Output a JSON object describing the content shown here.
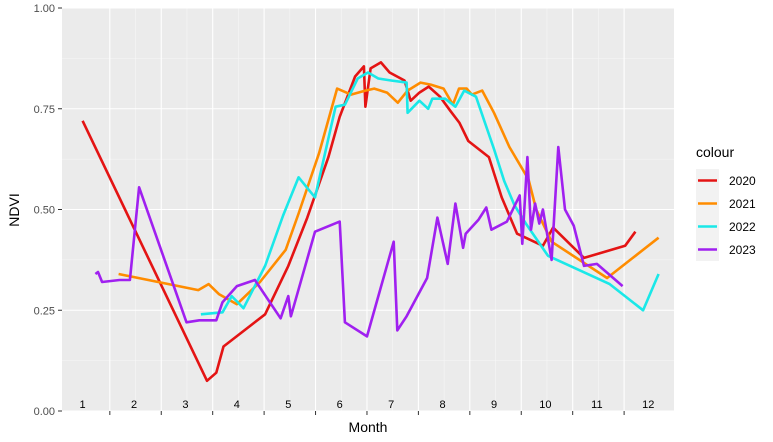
{
  "chart_data": {
    "type": "line",
    "xlabel": "Month",
    "ylabel": "NDVI",
    "xlim": [
      0.6,
      12.5
    ],
    "ylim": [
      0,
      1
    ],
    "y_ticks": [
      {
        "value": 0.0,
        "label": "0.00"
      },
      {
        "value": 0.25,
        "label": "0.25"
      },
      {
        "value": 0.5,
        "label": "0.50"
      },
      {
        "value": 0.75,
        "label": "0.75"
      },
      {
        "value": 1.0,
        "label": "1.00"
      }
    ],
    "x_tick_positions": [
      1.53,
      2.53,
      3.53,
      4.53,
      5.53,
      6.53,
      7.53,
      8.53,
      9.53,
      10.53,
      11.53
    ],
    "month_labels": [
      {
        "x": 1.0,
        "label": "1"
      },
      {
        "x": 2.0,
        "label": "2"
      },
      {
        "x": 3.0,
        "label": "3"
      },
      {
        "x": 4.0,
        "label": "4"
      },
      {
        "x": 5.0,
        "label": "5"
      },
      {
        "x": 6.0,
        "label": "6"
      },
      {
        "x": 7.0,
        "label": "7"
      },
      {
        "x": 8.0,
        "label": "8"
      },
      {
        "x": 9.0,
        "label": "9"
      },
      {
        "x": 10.0,
        "label": "10"
      },
      {
        "x": 11.0,
        "label": "11"
      },
      {
        "x": 12.0,
        "label": "12"
      }
    ],
    "grid": true,
    "legend": {
      "title": "colour",
      "position": "right"
    },
    "series": [
      {
        "name": "2020",
        "color": "#e41414",
        "points": [
          [
            1.0,
            0.72
          ],
          [
            3.42,
            0.075
          ],
          [
            3.6,
            0.095
          ],
          [
            3.74,
            0.16
          ],
          [
            4.55,
            0.24
          ],
          [
            5.0,
            0.36
          ],
          [
            5.37,
            0.48
          ],
          [
            5.78,
            0.63
          ],
          [
            6.0,
            0.73
          ],
          [
            6.3,
            0.83
          ],
          [
            6.47,
            0.855
          ],
          [
            6.5,
            0.755
          ],
          [
            6.6,
            0.85
          ],
          [
            6.8,
            0.865
          ],
          [
            6.97,
            0.84
          ],
          [
            7.26,
            0.82
          ],
          [
            7.38,
            0.77
          ],
          [
            7.55,
            0.79
          ],
          [
            7.73,
            0.805
          ],
          [
            7.95,
            0.78
          ],
          [
            8.15,
            0.745
          ],
          [
            8.33,
            0.715
          ],
          [
            8.5,
            0.67
          ],
          [
            8.9,
            0.63
          ],
          [
            9.15,
            0.53
          ],
          [
            9.45,
            0.44
          ],
          [
            9.95,
            0.41
          ],
          [
            10.15,
            0.455
          ],
          [
            10.75,
            0.38
          ],
          [
            11.55,
            0.41
          ],
          [
            11.75,
            0.445
          ]
        ]
      },
      {
        "name": "2021",
        "color": "#ff8c00",
        "points": [
          [
            1.7,
            0.34
          ],
          [
            3.25,
            0.3
          ],
          [
            3.45,
            0.315
          ],
          [
            3.65,
            0.29
          ],
          [
            4.0,
            0.265
          ],
          [
            4.45,
            0.32
          ],
          [
            4.95,
            0.4
          ],
          [
            5.2,
            0.49
          ],
          [
            5.6,
            0.64
          ],
          [
            5.95,
            0.8
          ],
          [
            6.22,
            0.785
          ],
          [
            6.5,
            0.795
          ],
          [
            6.67,
            0.8
          ],
          [
            6.92,
            0.79
          ],
          [
            7.13,
            0.765
          ],
          [
            7.32,
            0.795
          ],
          [
            7.57,
            0.815
          ],
          [
            7.77,
            0.81
          ],
          [
            8.02,
            0.8
          ],
          [
            8.2,
            0.76
          ],
          [
            8.32,
            0.8
          ],
          [
            8.47,
            0.8
          ],
          [
            8.57,
            0.785
          ],
          [
            8.77,
            0.795
          ],
          [
            9.0,
            0.74
          ],
          [
            9.3,
            0.655
          ],
          [
            9.67,
            0.575
          ],
          [
            9.82,
            0.5
          ],
          [
            10.12,
            0.42
          ],
          [
            11.2,
            0.33
          ],
          [
            12.2,
            0.43
          ]
        ]
      },
      {
        "name": "2022",
        "color": "#1ae8e8",
        "points": [
          [
            3.3,
            0.24
          ],
          [
            3.72,
            0.245
          ],
          [
            3.9,
            0.285
          ],
          [
            4.13,
            0.255
          ],
          [
            4.55,
            0.36
          ],
          [
            4.9,
            0.485
          ],
          [
            5.2,
            0.58
          ],
          [
            5.52,
            0.53
          ],
          [
            5.92,
            0.755
          ],
          [
            6.1,
            0.76
          ],
          [
            6.35,
            0.825
          ],
          [
            6.55,
            0.84
          ],
          [
            6.75,
            0.825
          ],
          [
            7.0,
            0.82
          ],
          [
            7.3,
            0.815
          ],
          [
            7.32,
            0.74
          ],
          [
            7.55,
            0.77
          ],
          [
            7.72,
            0.75
          ],
          [
            7.8,
            0.775
          ],
          [
            8.05,
            0.775
          ],
          [
            8.25,
            0.755
          ],
          [
            8.42,
            0.795
          ],
          [
            8.65,
            0.78
          ],
          [
            9.0,
            0.65
          ],
          [
            9.2,
            0.57
          ],
          [
            9.4,
            0.51
          ],
          [
            9.62,
            0.465
          ],
          [
            10.05,
            0.385
          ],
          [
            11.25,
            0.315
          ],
          [
            11.9,
            0.25
          ],
          [
            12.2,
            0.34
          ]
        ]
      },
      {
        "name": "2023",
        "color": "#a020f0",
        "points": [
          [
            1.25,
            0.34
          ],
          [
            1.3,
            0.345
          ],
          [
            1.38,
            0.32
          ],
          [
            1.72,
            0.325
          ],
          [
            1.92,
            0.325
          ],
          [
            2.1,
            0.555
          ],
          [
            3.02,
            0.22
          ],
          [
            3.27,
            0.225
          ],
          [
            3.6,
            0.225
          ],
          [
            3.72,
            0.27
          ],
          [
            4.0,
            0.31
          ],
          [
            4.35,
            0.325
          ],
          [
            4.85,
            0.23
          ],
          [
            5.0,
            0.285
          ],
          [
            5.05,
            0.235
          ],
          [
            5.52,
            0.445
          ],
          [
            6.0,
            0.47
          ],
          [
            6.1,
            0.22
          ],
          [
            6.53,
            0.185
          ],
          [
            7.05,
            0.42
          ],
          [
            7.12,
            0.2
          ],
          [
            7.3,
            0.235
          ],
          [
            7.7,
            0.33
          ],
          [
            7.9,
            0.48
          ],
          [
            8.1,
            0.365
          ],
          [
            8.25,
            0.515
          ],
          [
            8.4,
            0.405
          ],
          [
            8.45,
            0.44
          ],
          [
            8.7,
            0.475
          ],
          [
            8.85,
            0.505
          ],
          [
            8.95,
            0.45
          ],
          [
            9.25,
            0.47
          ],
          [
            9.5,
            0.535
          ],
          [
            9.55,
            0.415
          ],
          [
            9.65,
            0.63
          ],
          [
            9.72,
            0.45
          ],
          [
            9.8,
            0.515
          ],
          [
            9.88,
            0.465
          ],
          [
            9.95,
            0.5
          ],
          [
            10.12,
            0.375
          ],
          [
            10.25,
            0.655
          ],
          [
            10.38,
            0.5
          ],
          [
            10.55,
            0.46
          ],
          [
            10.75,
            0.36
          ],
          [
            11.0,
            0.365
          ],
          [
            11.5,
            0.31
          ]
        ]
      }
    ]
  }
}
